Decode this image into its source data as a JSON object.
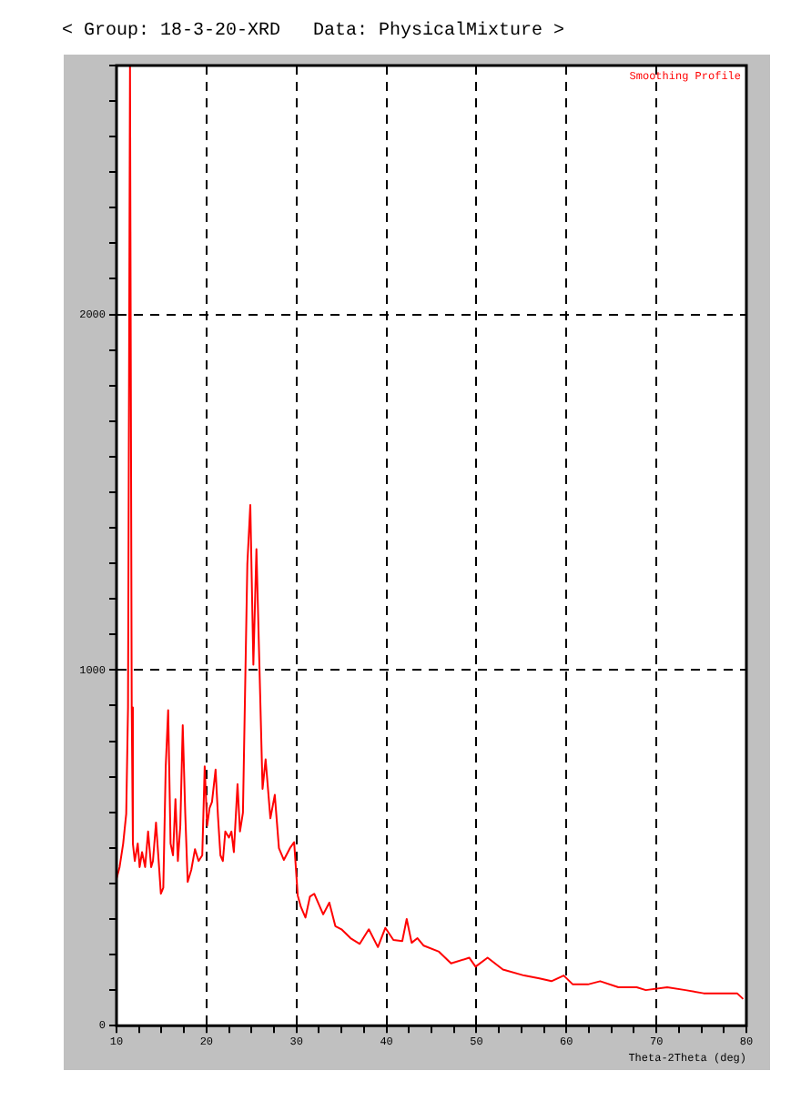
{
  "chart_data": {
    "type": "line",
    "title": "< Group: 18-3-20-XRD   Data: PhysicalMixture >",
    "xlabel": "Theta-2Theta (deg)",
    "annotations": [
      "Smoothing Profile"
    ],
    "x": [
      10.0,
      10.34,
      10.74,
      11.08,
      11.28,
      11.5,
      11.69,
      11.82,
      12.03,
      12.36,
      12.57,
      12.84,
      13.18,
      13.51,
      13.85,
      14.05,
      14.39,
      14.73,
      14.93,
      15.2,
      15.47,
      15.74,
      16.01,
      16.28,
      16.55,
      16.82,
      17.09,
      17.36,
      17.64,
      17.91,
      18.31,
      18.72,
      19.12,
      19.53,
      19.8,
      20.07,
      20.34,
      20.61,
      21.01,
      21.28,
      21.55,
      21.82,
      22.09,
      22.5,
      22.77,
      23.04,
      23.45,
      23.72,
      24.05,
      24.54,
      24.87,
      25.21,
      25.55,
      25.88,
      26.23,
      26.57,
      27.1,
      27.59,
      28.05,
      28.6,
      29.27,
      29.74,
      30.14,
      30.49,
      31.0,
      31.5,
      31.97,
      32.97,
      33.65,
      34.32,
      35.0,
      36.01,
      37.03,
      38.04,
      39.05,
      39.88,
      40.77,
      41.76,
      42.25,
      42.8,
      43.45,
      44.14,
      45.84,
      47.18,
      49.21,
      49.9,
      51.24,
      52.94,
      55.3,
      57.0,
      58.34,
      59.7,
      60.71,
      62.39,
      63.75,
      65.78,
      67.81,
      68.82,
      71.2,
      73.23,
      75.25,
      77.28,
      78.97,
      79.64
    ],
    "series": [
      {
        "color": "#ff0000",
        "values": [
          413,
          446,
          512,
          596,
          895,
          2700,
          895,
          512,
          463,
          512,
          446,
          488,
          446,
          546,
          446,
          463,
          571,
          446,
          371,
          388,
          729,
          887,
          512,
          479,
          637,
          463,
          562,
          845,
          596,
          404,
          438,
          496,
          463,
          479,
          729,
          562,
          612,
          629,
          720,
          587,
          479,
          463,
          546,
          529,
          546,
          488,
          679,
          546,
          599,
          1298,
          1464,
          1015,
          1340,
          1015,
          666,
          749,
          583,
          649,
          499,
          466,
          499,
          516,
          366,
          334,
          304,
          363,
          371,
          313,
          346,
          280,
          271,
          246,
          230,
          271,
          221,
          275,
          241,
          238,
          300,
          233,
          246,
          225,
          208,
          175,
          191,
          166,
          191,
          158,
          141,
          133,
          125,
          141,
          116,
          116,
          125,
          108,
          108,
          100,
          108,
          100,
          91,
          91,
          91,
          75
        ]
      }
    ],
    "xlim": [
      10,
      80
    ],
    "ylim": [
      0,
      2700
    ],
    "xticks": [
      10,
      {
        "value": 12.5,
        "label": null
      },
      {
        "value": 15,
        "label": null
      },
      {
        "value": 17.5,
        "label": null
      },
      20,
      {
        "value": 22.5,
        "label": null
      },
      {
        "value": 25,
        "label": null
      },
      {
        "value": 27.5,
        "label": null
      },
      30,
      {
        "value": 32.5,
        "label": null
      },
      {
        "value": 35,
        "label": null
      },
      {
        "value": 37.5,
        "label": null
      },
      40,
      {
        "value": 42.5,
        "label": null
      },
      {
        "value": 45,
        "label": null
      },
      {
        "value": 47.5,
        "label": null
      },
      50,
      {
        "value": 52.5,
        "label": null
      },
      {
        "value": 55,
        "label": null
      },
      {
        "value": 57.5,
        "label": null
      },
      60,
      {
        "value": 62.5,
        "label": null
      },
      {
        "value": 65,
        "label": null
      },
      {
        "value": 67.5,
        "label": null
      },
      70,
      {
        "value": 72.5,
        "label": null
      },
      {
        "value": 75,
        "label": null
      },
      {
        "value": 77.5,
        "label": null
      },
      80
    ],
    "yticks": [
      0,
      {
        "value": 100,
        "label": null
      },
      {
        "value": 200,
        "label": null
      },
      {
        "value": 300,
        "label": null
      },
      {
        "value": 400,
        "label": null
      },
      {
        "value": 500,
        "label": null
      },
      {
        "value": 600,
        "label": null
      },
      {
        "value": 700,
        "label": null
      },
      {
        "value": 800,
        "label": null
      },
      {
        "value": 900,
        "label": null
      },
      1000,
      {
        "value": 1100,
        "label": null
      },
      {
        "value": 1200,
        "label": null
      },
      {
        "value": 1300,
        "label": null
      },
      {
        "value": 1400,
        "label": null
      },
      {
        "value": 1500,
        "label": null
      },
      {
        "value": 1600,
        "label": null
      },
      {
        "value": 1700,
        "label": null
      },
      {
        "value": 1800,
        "label": null
      },
      {
        "value": 1900,
        "label": null
      },
      2000,
      {
        "value": 2100,
        "label": null
      },
      {
        "value": 2200,
        "label": null
      },
      {
        "value": 2300,
        "label": null
      },
      {
        "value": 2400,
        "label": null
      },
      {
        "value": 2500,
        "label": null
      },
      {
        "value": 2600,
        "label": null
      },
      {
        "value": 2700,
        "label": null
      }
    ],
    "grid": true,
    "legend": false,
    "marker": "none",
    "line_style": "solid"
  }
}
